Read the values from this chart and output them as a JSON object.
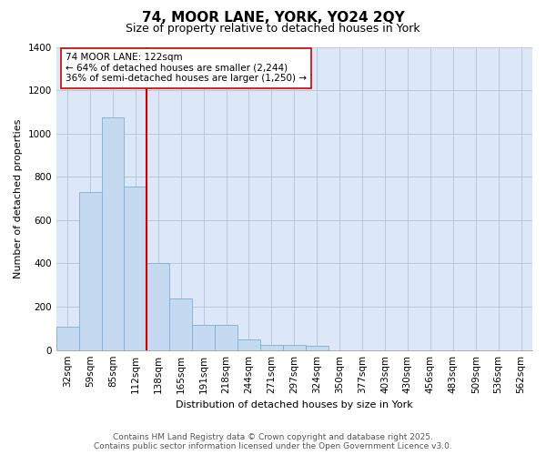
{
  "title1": "74, MOOR LANE, YORK, YO24 2QY",
  "title2": "Size of property relative to detached houses in York",
  "xlabel": "Distribution of detached houses by size in York",
  "ylabel": "Number of detached properties",
  "categories": [
    "32sqm",
    "59sqm",
    "85sqm",
    "112sqm",
    "138sqm",
    "165sqm",
    "191sqm",
    "218sqm",
    "244sqm",
    "271sqm",
    "297sqm",
    "324sqm",
    "350sqm",
    "377sqm",
    "403sqm",
    "430sqm",
    "456sqm",
    "483sqm",
    "509sqm",
    "536sqm",
    "562sqm"
  ],
  "values": [
    108,
    730,
    1075,
    755,
    400,
    240,
    115,
    115,
    50,
    25,
    25,
    20,
    0,
    0,
    0,
    0,
    0,
    0,
    0,
    0,
    0
  ],
  "bar_color": "#c5d9f0",
  "bar_edge_color": "#7bafd4",
  "vline_pos": 3.5,
  "vline_color": "#cc0000",
  "annotation_text": "74 MOOR LANE: 122sqm\n← 64% of detached houses are smaller (2,244)\n36% of semi-detached houses are larger (1,250) →",
  "annotation_box_facecolor": "#ffffff",
  "annotation_box_edgecolor": "#cc0000",
  "ylim": [
    0,
    1400
  ],
  "yticks": [
    0,
    200,
    400,
    600,
    800,
    1000,
    1200,
    1400
  ],
  "fig_facecolor": "#ffffff",
  "plot_facecolor": "#dce8f8",
  "grid_color": "#b8c8dc",
  "footer1": "Contains HM Land Registry data © Crown copyright and database right 2025.",
  "footer2": "Contains public sector information licensed under the Open Government Licence v3.0.",
  "title1_fontsize": 11,
  "title2_fontsize": 9,
  "axis_label_fontsize": 8,
  "tick_fontsize": 7.5,
  "annotation_fontsize": 7.5,
  "footer_fontsize": 6.5
}
